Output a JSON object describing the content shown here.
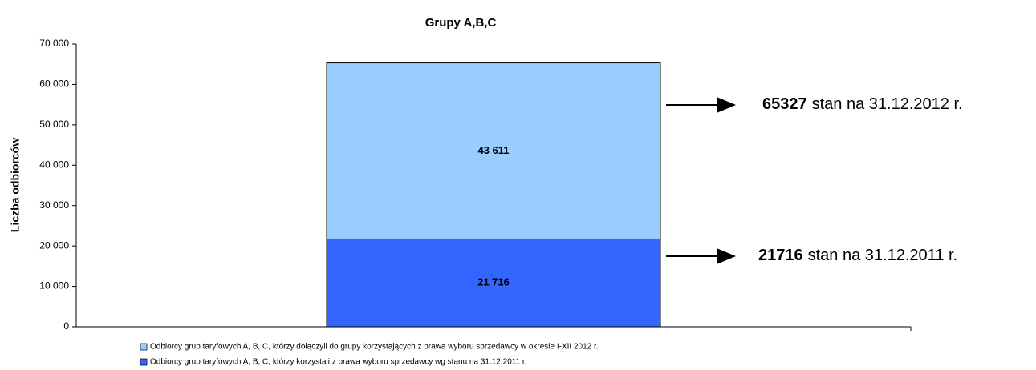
{
  "chart_data": {
    "type": "stacked_bar",
    "title": "Grupy A,B,C",
    "y_label": "Liczba odbiorców",
    "categories": [
      null
    ],
    "series": [
      {
        "name": "Odbiorcy grup taryfowych A, B, C, którzy korzystali z prawa wyboru sprzedawcy wg stanu na 31.12.2011 r.",
        "color": "#3366ff",
        "values": [
          21716
        ],
        "value_labels": [
          "21 716"
        ]
      },
      {
        "name": "Odbiorcy grup taryfowych A, B, C, którzy dołączyli do grupy korzystających z prawa wyboru sprzedawcy w okresie I-XII 2012 r.",
        "color": "#99ccff",
        "values": [
          43611
        ],
        "value_labels": [
          "43 611"
        ]
      }
    ],
    "ylim": [
      0,
      70000
    ],
    "yticks": [
      0,
      {
        "value": 10000,
        "label": "10 000"
      },
      {
        "value": 20000,
        "label": "20 000"
      },
      {
        "value": 30000,
        "label": "30 000"
      },
      {
        "value": 40000,
        "label": "40 000"
      },
      {
        "value": 50000,
        "label": "50 000"
      },
      {
        "value": 60000,
        "label": "60 000"
      },
      {
        "value": 70000,
        "label": "70 000"
      }
    ],
    "annotations": [
      {
        "value": 65327,
        "text": "stan na 31.12.2012 r."
      },
      {
        "value": 21716,
        "text": "stan na 31.12.2011 r."
      }
    ]
  }
}
